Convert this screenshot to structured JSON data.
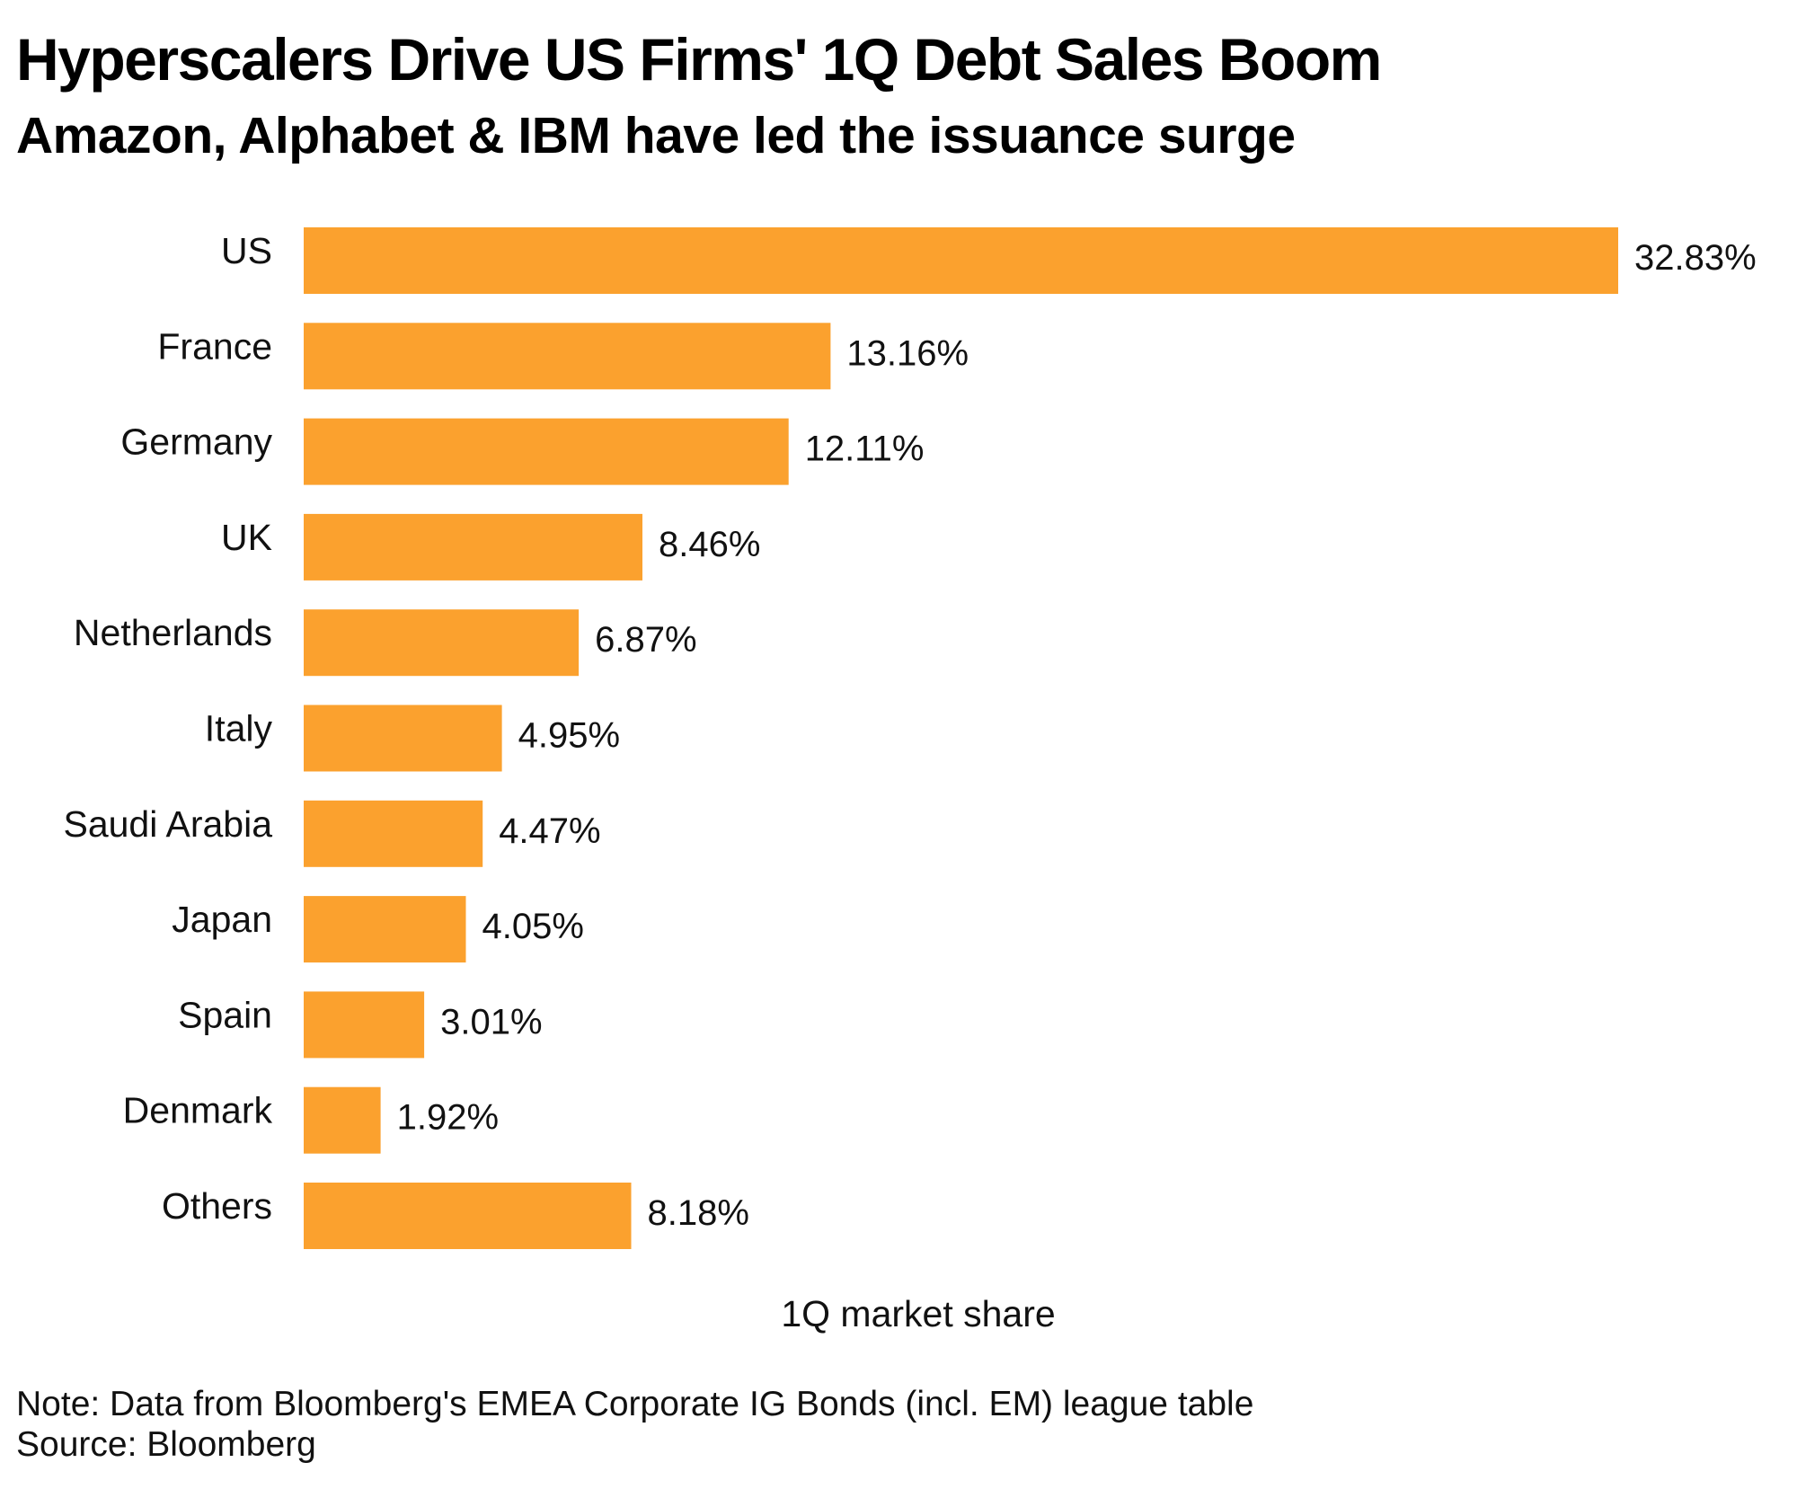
{
  "header": {
    "title": "Hyperscalers Drive US Firms' 1Q Debt Sales Boom",
    "subtitle": "Amazon, Alphabet & IBM have led the issuance surge"
  },
  "footer": {
    "note": "Note: Data from Bloomberg's EMEA Corporate IG Bonds (incl. EM) league table",
    "source": "Source: Bloomberg"
  },
  "colors": {
    "bar": "#fba12e",
    "text": "#111111"
  },
  "chart_data": {
    "type": "bar",
    "orientation": "horizontal",
    "title": "Hyperscalers Drive US Firms' 1Q Debt Sales Boom",
    "subtitle": "Amazon, Alphabet & IBM have led the issuance surge",
    "xlabel": "1Q market share",
    "ylabel": "",
    "categories": [
      "US",
      "France",
      "Germany",
      "UK",
      "Netherlands",
      "Italy",
      "Saudi Arabia",
      "Japan",
      "Spain",
      "Denmark",
      "Others"
    ],
    "values": [
      32.83,
      13.16,
      12.11,
      8.46,
      6.87,
      4.95,
      4.47,
      4.05,
      3.01,
      1.92,
      8.18
    ],
    "value_labels": [
      "32.83%",
      "13.16%",
      "12.11%",
      "8.46%",
      "6.87%",
      "4.95%",
      "4.47%",
      "4.05%",
      "3.01%",
      "1.92%",
      "8.18%"
    ],
    "unit": "%",
    "xlim": [
      0,
      32.83
    ],
    "grid": false,
    "legend": "none"
  }
}
